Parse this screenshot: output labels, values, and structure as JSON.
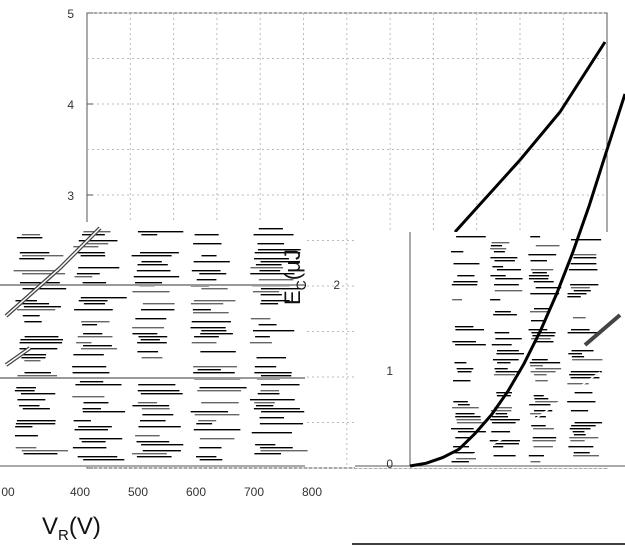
{
  "chart_data": [
    {
      "type": "line",
      "title": "",
      "xlabel": "",
      "ylabel": "E",
      "ylabel_sub": "C",
      "ylabel_unit": "(µJ",
      "xlim": [
        0,
        330
      ],
      "ylim": [
        0,
        5
      ],
      "yticks": [
        "0",
        "1",
        "2",
        "3",
        "4",
        "5"
      ],
      "grid": true,
      "series": [
        {
          "x": [
            0,
            25,
            50,
            75,
            100,
            125,
            150,
            175,
            200,
            225,
            250,
            275,
            300,
            330
          ],
          "y": [
            0.0,
            0.03,
            0.09,
            0.18,
            0.35,
            0.55,
            0.8,
            1.1,
            1.45,
            1.85,
            2.3,
            2.8,
            3.35,
            4.0
          ]
        }
      ],
      "colors": {
        "line": "#000000"
      }
    },
    {
      "type": "line",
      "title": "",
      "xlabel": "V",
      "xlabel_sub": "R",
      "xlabel_unit": "(V)",
      "xlim": [
        300,
        800
      ],
      "xticks": [
        "00",
        "400",
        "500",
        "600",
        "700",
        "800"
      ],
      "grid": true
    }
  ]
}
